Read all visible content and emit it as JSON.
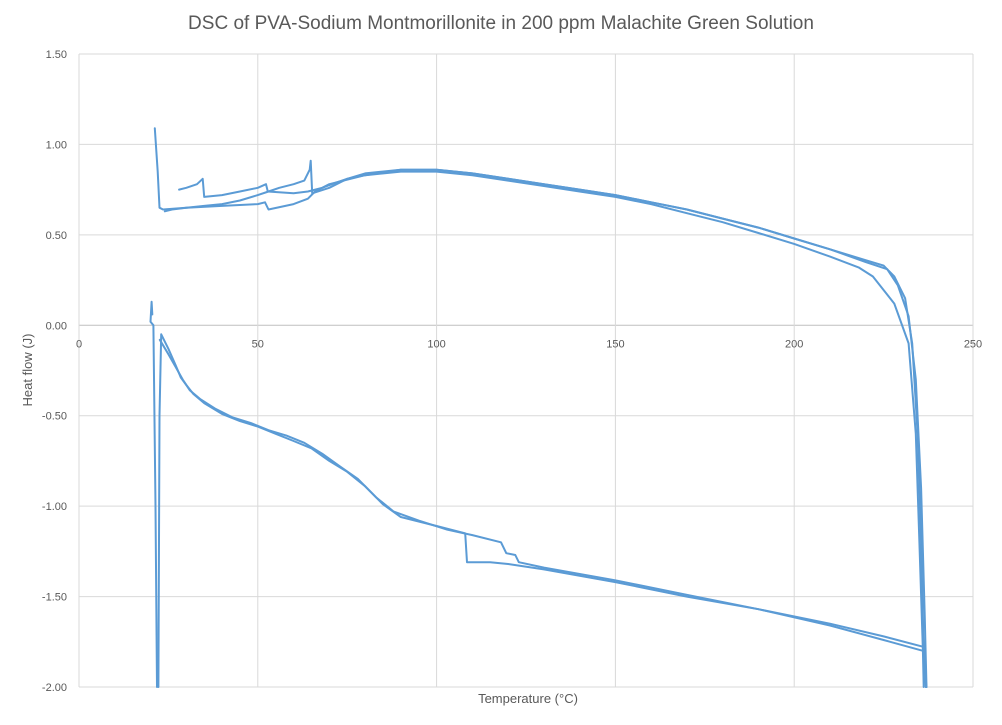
{
  "chart_data": {
    "type": "line",
    "title": "DSC of PVA-Sodium Montmorillonite in 200 ppm Malachite Green Solution",
    "xlabel": "Temperature (°C)",
    "ylabel": "Heat flow (J)",
    "xlim": [
      0,
      250
    ],
    "ylim": [
      -2.0,
      1.5
    ],
    "xticks": [
      "0",
      "50",
      "100",
      "150",
      "200",
      "250"
    ],
    "yticks": [
      "1.50",
      "1.00",
      "0.50",
      "0.00",
      "-0.50",
      "-1.00",
      "-1.50",
      "-2.00"
    ],
    "grid": true,
    "legend": "none",
    "color": "#5b9bd5",
    "series": [
      {
        "points": [
          [
            21.8,
            -2.0
          ],
          [
            21.4,
            -1.0
          ],
          [
            20.8,
            0.0
          ],
          [
            20.0,
            0.02
          ],
          [
            20.3,
            0.13
          ],
          [
            20.5,
            0.06
          ]
        ]
      },
      {
        "points": [
          [
            21.2,
            1.09
          ],
          [
            22.0,
            0.85
          ],
          [
            22.5,
            0.65
          ],
          [
            23.5,
            0.64
          ],
          [
            30,
            0.65
          ],
          [
            40,
            0.66
          ],
          [
            50,
            0.67
          ],
          [
            52,
            0.68
          ],
          [
            53,
            0.64
          ],
          [
            60,
            0.67
          ],
          [
            64,
            0.7
          ],
          [
            66,
            0.74
          ],
          [
            70,
            0.78
          ],
          [
            80,
            0.83
          ],
          [
            90,
            0.85
          ],
          [
            100,
            0.85
          ],
          [
            110,
            0.83
          ],
          [
            120,
            0.8
          ],
          [
            130,
            0.77
          ],
          [
            140,
            0.74
          ],
          [
            150,
            0.71
          ],
          [
            160,
            0.67
          ],
          [
            170,
            0.62
          ],
          [
            180,
            0.57
          ],
          [
            190,
            0.51
          ],
          [
            200,
            0.45
          ],
          [
            210,
            0.38
          ],
          [
            218,
            0.32
          ],
          [
            222,
            0.27
          ],
          [
            228,
            0.12
          ],
          [
            232,
            -0.1
          ],
          [
            234,
            -0.6
          ],
          [
            235,
            -1.2
          ],
          [
            236,
            -1.8
          ],
          [
            237,
            -2.0
          ]
        ]
      },
      {
        "points": [
          [
            24,
            0.63
          ],
          [
            26,
            0.64
          ],
          [
            30,
            0.65
          ],
          [
            35,
            0.66
          ],
          [
            40,
            0.67
          ],
          [
            45,
            0.69
          ],
          [
            50,
            0.72
          ],
          [
            53,
            0.74
          ],
          [
            56,
            0.76
          ],
          [
            60,
            0.78
          ],
          [
            63,
            0.8
          ],
          [
            64.5,
            0.86
          ],
          [
            64.8,
            0.91
          ],
          [
            65.2,
            0.73
          ],
          [
            70,
            0.76
          ],
          [
            75,
            0.81
          ],
          [
            80,
            0.84
          ],
          [
            90,
            0.86
          ],
          [
            100,
            0.86
          ],
          [
            110,
            0.84
          ],
          [
            120,
            0.81
          ],
          [
            130,
            0.78
          ],
          [
            140,
            0.75
          ],
          [
            150,
            0.72
          ],
          [
            160,
            0.68
          ],
          [
            170,
            0.64
          ],
          [
            180,
            0.59
          ],
          [
            190,
            0.54
          ],
          [
            200,
            0.48
          ],
          [
            210,
            0.42
          ],
          [
            220,
            0.36
          ],
          [
            225,
            0.33
          ],
          [
            228,
            0.27
          ],
          [
            231,
            0.15
          ],
          [
            233,
            -0.1
          ],
          [
            234.5,
            -0.6
          ],
          [
            235.5,
            -1.2
          ],
          [
            236.2,
            -1.8
          ],
          [
            236.8,
            -2.0
          ]
        ]
      },
      {
        "points": [
          [
            28,
            0.75
          ],
          [
            30,
            0.76
          ],
          [
            33,
            0.78
          ],
          [
            34.6,
            0.81
          ],
          [
            35,
            0.71
          ],
          [
            40,
            0.72
          ],
          [
            45,
            0.74
          ],
          [
            50,
            0.76
          ],
          [
            52.3,
            0.78
          ],
          [
            52.8,
            0.74
          ],
          [
            60,
            0.73
          ],
          [
            64,
            0.74
          ],
          [
            68,
            0.76
          ],
          [
            72,
            0.79
          ],
          [
            75,
            0.81
          ],
          [
            80,
            0.83
          ],
          [
            90,
            0.86
          ],
          [
            100,
            0.86
          ],
          [
            110,
            0.84
          ],
          [
            120,
            0.81
          ],
          [
            130,
            0.78
          ],
          [
            140,
            0.75
          ],
          [
            150,
            0.72
          ],
          [
            160,
            0.68
          ],
          [
            170,
            0.64
          ],
          [
            180,
            0.59
          ],
          [
            190,
            0.54
          ],
          [
            200,
            0.48
          ],
          [
            210,
            0.42
          ],
          [
            220,
            0.35
          ],
          [
            226,
            0.31
          ],
          [
            229,
            0.22
          ],
          [
            232,
            0.05
          ],
          [
            234,
            -0.3
          ],
          [
            235.5,
            -0.9
          ],
          [
            236.5,
            -1.6
          ],
          [
            237,
            -2.0
          ]
        ]
      },
      {
        "points": [
          [
            22.2,
            -2.0
          ],
          [
            22.5,
            -0.5
          ],
          [
            23.0,
            -0.05
          ],
          [
            25,
            -0.13
          ],
          [
            27,
            -0.22
          ],
          [
            28.5,
            -0.29
          ],
          [
            30,
            -0.33
          ],
          [
            32,
            -0.38
          ],
          [
            35,
            -0.43
          ],
          [
            40,
            -0.49
          ],
          [
            45,
            -0.53
          ],
          [
            50,
            -0.56
          ],
          [
            55,
            -0.6
          ],
          [
            60,
            -0.64
          ],
          [
            65,
            -0.68
          ],
          [
            70,
            -0.75
          ],
          [
            75,
            -0.81
          ],
          [
            80,
            -0.89
          ],
          [
            85,
            -0.99
          ],
          [
            90,
            -1.06
          ],
          [
            100,
            -1.11
          ],
          [
            108,
            -1.15
          ],
          [
            108.5,
            -1.31
          ],
          [
            115,
            -1.31
          ],
          [
            120,
            -1.32
          ],
          [
            130,
            -1.35
          ],
          [
            150,
            -1.42
          ],
          [
            170,
            -1.5
          ],
          [
            190,
            -1.57
          ],
          [
            210,
            -1.66
          ],
          [
            225,
            -1.74
          ],
          [
            236,
            -1.8
          ],
          [
            236.2,
            -2.0
          ]
        ]
      },
      {
        "points": [
          [
            22.6,
            -0.08
          ],
          [
            25,
            -0.16
          ],
          [
            27,
            -0.23
          ],
          [
            29,
            -0.3
          ],
          [
            31,
            -0.36
          ],
          [
            34,
            -0.41
          ],
          [
            38,
            -0.46
          ],
          [
            43,
            -0.51
          ],
          [
            48,
            -0.54
          ],
          [
            53,
            -0.58
          ],
          [
            58,
            -0.61
          ],
          [
            63,
            -0.65
          ],
          [
            68,
            -0.71
          ],
          [
            73,
            -0.78
          ],
          [
            78,
            -0.85
          ],
          [
            83,
            -0.95
          ],
          [
            88,
            -1.03
          ],
          [
            95,
            -1.08
          ],
          [
            103,
            -1.13
          ],
          [
            110,
            -1.16
          ],
          [
            118,
            -1.2
          ],
          [
            119.5,
            -1.26
          ],
          [
            122,
            -1.27
          ],
          [
            123,
            -1.31
          ],
          [
            130,
            -1.34
          ],
          [
            150,
            -1.41
          ],
          [
            170,
            -1.49
          ],
          [
            190,
            -1.57
          ],
          [
            210,
            -1.65
          ],
          [
            225,
            -1.72
          ],
          [
            236.5,
            -1.78
          ],
          [
            236.8,
            -2.0
          ]
        ]
      }
    ]
  }
}
